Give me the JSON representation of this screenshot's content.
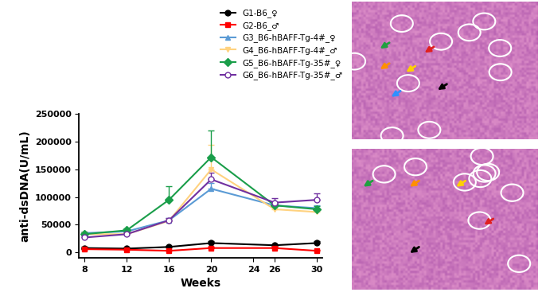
{
  "chart_data": {
    "type": "line",
    "x_label": "Weeks",
    "y_label": "anti-dsDNA(U/mL)",
    "x": [
      8,
      12,
      16,
      20,
      26,
      30
    ],
    "xlim": [
      7.5,
      30.5
    ],
    "xticks": [
      8,
      12,
      16,
      20,
      24,
      26,
      30
    ],
    "ylim": [
      -10000,
      250000
    ],
    "yticks": [
      0,
      50000,
      100000,
      150000,
      200000,
      250000
    ],
    "grid": false,
    "legend": "upper left",
    "series": [
      {
        "name": "G1-B6_♀",
        "color": "#000000",
        "marker": "circle",
        "values": [
          8000,
          7000,
          10000,
          17000,
          13000,
          17000
        ],
        "errors": [
          2000,
          2000,
          2000,
          3000,
          2000,
          3000
        ]
      },
      {
        "name": "G2-B6_♂",
        "color": "#ff0000",
        "marker": "square",
        "values": [
          6000,
          5000,
          3000,
          8000,
          8000,
          3000
        ],
        "errors": [
          2000,
          2000,
          1000,
          2000,
          2000,
          1000
        ]
      },
      {
        "name": "G3_B6-hBAFF-Tg-4#_♀",
        "color": "#5b9bd5",
        "marker": "triangle_up",
        "values": [
          35000,
          38000,
          58000,
          115000,
          85000,
          80000
        ],
        "errors": [
          3000,
          3000,
          4000,
          10000,
          5000,
          5000
        ]
      },
      {
        "name": "G4_B6-hBAFF-Tg-4#_♂",
        "color": "#ffd27f",
        "marker": "triangle_down",
        "values": [
          33000,
          33000,
          57000,
          150000,
          78000,
          73000
        ],
        "errors": [
          3000,
          3000,
          4000,
          45000,
          5000,
          5000
        ]
      },
      {
        "name": "G5_B6-hBAFF-Tg-35#_♀",
        "color": "#1a9e4a",
        "marker": "diamond",
        "values": [
          33000,
          40000,
          95000,
          172000,
          85000,
          78000
        ],
        "errors": [
          3000,
          3000,
          25000,
          48000,
          5000,
          5000
        ]
      },
      {
        "name": "G6_B6-hBAFF-Tg-35#_♂",
        "color": "#7030a0",
        "marker": "open_circle",
        "values": [
          27000,
          33000,
          58000,
          132000,
          90000,
          95000
        ],
        "errors": [
          3000,
          3000,
          4000,
          12000,
          8000,
          12000
        ]
      }
    ]
  }
}
